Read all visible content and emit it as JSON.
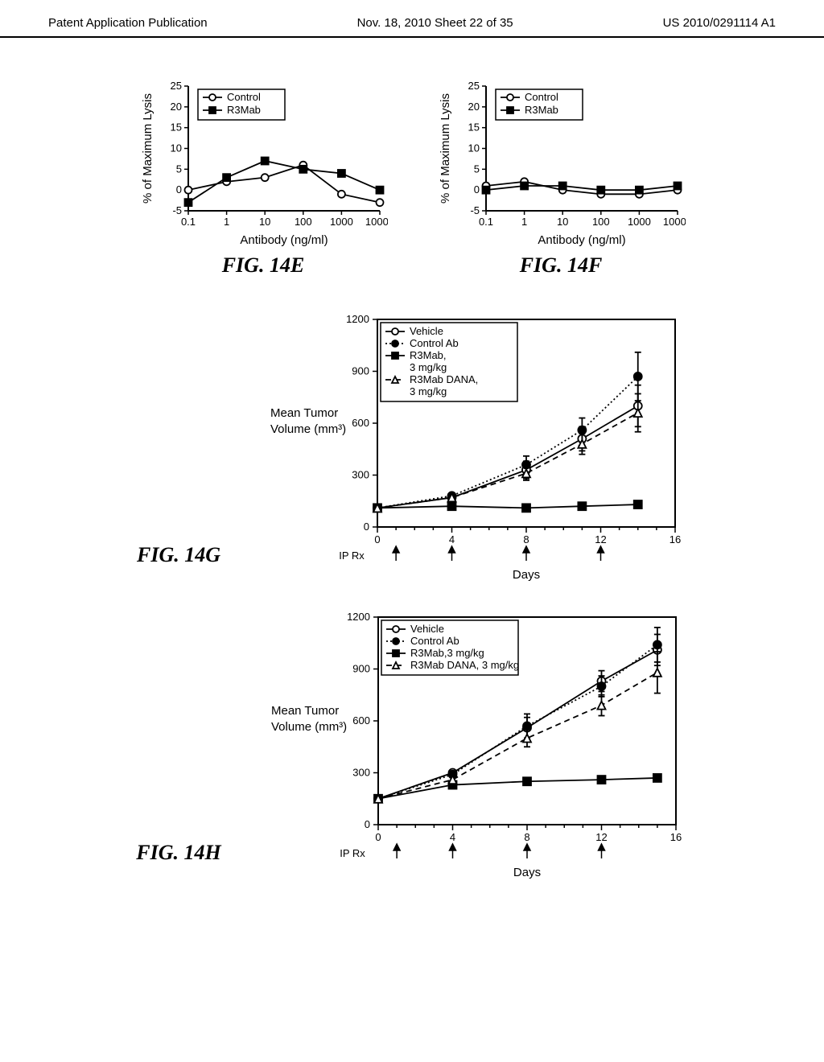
{
  "header": {
    "left": "Patent Application Publication",
    "center": "Nov. 18, 2010  Sheet 22 of 35",
    "right": "US 2010/0291114 A1"
  },
  "chart14E": {
    "type": "line",
    "figure_label": "FIG. 14E",
    "x_label": "Antibody (ng/ml)",
    "y_label": "% of Maximum Lysis",
    "x_scale": "log",
    "x_ticks": [
      "0.1",
      "1",
      "10",
      "100",
      "1000",
      "10000"
    ],
    "y_min": -5,
    "y_max": 25,
    "y_step": 5,
    "y_ticks": [
      "-5",
      "0",
      "5",
      "10",
      "15",
      "20",
      "25"
    ],
    "series": [
      {
        "name": "Control",
        "marker": "open-circle",
        "line": "solid",
        "points": [
          {
            "x": 0,
            "y": 0
          },
          {
            "x": 1,
            "y": 2
          },
          {
            "x": 2,
            "y": 3
          },
          {
            "x": 3,
            "y": 6
          },
          {
            "x": 4,
            "y": -1
          },
          {
            "x": 5,
            "y": -3
          }
        ]
      },
      {
        "name": "R3Mab",
        "marker": "filled-square",
        "line": "solid",
        "points": [
          {
            "x": 0,
            "y": -3
          },
          {
            "x": 1,
            "y": 3
          },
          {
            "x": 2,
            "y": 7
          },
          {
            "x": 3,
            "y": 5
          },
          {
            "x": 4,
            "y": 4
          },
          {
            "x": 5,
            "y": 0
          }
        ]
      }
    ],
    "legend": [
      "Control",
      "R3Mab"
    ]
  },
  "chart14F": {
    "type": "line",
    "figure_label": "FIG. 14F",
    "x_label": "Antibody (ng/ml)",
    "y_label": "% of Maximum Lysis",
    "x_scale": "log",
    "x_ticks": [
      "0.1",
      "1",
      "10",
      "100",
      "1000",
      "10000"
    ],
    "y_min": -5,
    "y_max": 25,
    "y_step": 5,
    "y_ticks": [
      "-5",
      "0",
      "5",
      "10",
      "15",
      "20",
      "25"
    ],
    "series": [
      {
        "name": "Control",
        "marker": "open-circle",
        "line": "solid",
        "points": [
          {
            "x": 0,
            "y": 1
          },
          {
            "x": 1,
            "y": 2
          },
          {
            "x": 2,
            "y": 0
          },
          {
            "x": 3,
            "y": -1
          },
          {
            "x": 4,
            "y": -1
          },
          {
            "x": 5,
            "y": 0
          }
        ]
      },
      {
        "name": "R3Mab",
        "marker": "filled-square",
        "line": "solid",
        "points": [
          {
            "x": 0,
            "y": 0
          },
          {
            "x": 1,
            "y": 1
          },
          {
            "x": 2,
            "y": 1
          },
          {
            "x": 3,
            "y": 0
          },
          {
            "x": 4,
            "y": 0
          },
          {
            "x": 5,
            "y": 1
          }
        ]
      }
    ],
    "legend": [
      "Control",
      "R3Mab"
    ]
  },
  "chart14G": {
    "type": "line",
    "figure_label": "FIG. 14G",
    "x_label": "Days",
    "y_label_l1": "Mean Tumor",
    "y_label_l2": "Volume (mm³)",
    "x_min": 0,
    "x_max": 16,
    "x_step": 4,
    "x_ticks": [
      "0",
      "4",
      "8",
      "12",
      "16"
    ],
    "y_min": 0,
    "y_max": 1200,
    "y_step": 300,
    "y_ticks": [
      "0",
      "300",
      "600",
      "900",
      "1200"
    ],
    "iprx": "IP Rx",
    "arrows": [
      1,
      4,
      8,
      12
    ],
    "series": [
      {
        "name": "Vehicle",
        "marker": "open-circle",
        "line": "solid",
        "points": [
          {
            "x": 0,
            "y": 110
          },
          {
            "x": 4,
            "y": 170
          },
          {
            "x": 8,
            "y": 330,
            "err": 50
          },
          {
            "x": 11,
            "y": 510,
            "err": 70
          },
          {
            "x": 14,
            "y": 700,
            "err": 120
          }
        ]
      },
      {
        "name": "Control Ab",
        "marker": "filled-circle",
        "line": "dotted",
        "points": [
          {
            "x": 0,
            "y": 110
          },
          {
            "x": 4,
            "y": 180
          },
          {
            "x": 8,
            "y": 360,
            "err": 50
          },
          {
            "x": 11,
            "y": 560,
            "err": 70
          },
          {
            "x": 14,
            "y": 870,
            "err": 140
          }
        ]
      },
      {
        "name": "R3Mab, 3 mg/kg",
        "marker": "filled-square",
        "line": "solid",
        "points": [
          {
            "x": 0,
            "y": 110
          },
          {
            "x": 4,
            "y": 120
          },
          {
            "x": 8,
            "y": 110
          },
          {
            "x": 11,
            "y": 120
          },
          {
            "x": 14,
            "y": 130
          }
        ]
      },
      {
        "name": "R3Mab DANA, 3 mg/kg",
        "marker": "open-triangle",
        "line": "dashed",
        "points": [
          {
            "x": 0,
            "y": 110
          },
          {
            "x": 4,
            "y": 170
          },
          {
            "x": 8,
            "y": 310,
            "err": 40
          },
          {
            "x": 11,
            "y": 480,
            "err": 60
          },
          {
            "x": 14,
            "y": 660,
            "err": 110
          }
        ]
      }
    ],
    "legend": [
      "Vehicle",
      "Control Ab",
      "R3Mab,",
      "  3 mg/kg",
      "R3Mab DANA,",
      "  3 mg/kg"
    ]
  },
  "chart14H": {
    "type": "line",
    "figure_label": "FIG. 14H",
    "x_label": "Days",
    "y_label_l1": "Mean Tumor",
    "y_label_l2": "Volume (mm³)",
    "x_min": 0,
    "x_max": 16,
    "x_step": 4,
    "x_ticks": [
      "0",
      "4",
      "8",
      "12",
      "16"
    ],
    "y_min": 0,
    "y_max": 1200,
    "y_step": 300,
    "y_ticks": [
      "0",
      "300",
      "600",
      "900",
      "1200"
    ],
    "iprx": "IP Rx",
    "arrows": [
      1,
      4,
      8,
      12
    ],
    "series": [
      {
        "name": "Vehicle",
        "marker": "open-circle",
        "line": "solid",
        "points": [
          {
            "x": 0,
            "y": 150
          },
          {
            "x": 4,
            "y": 300
          },
          {
            "x": 8,
            "y": 560,
            "err": 60
          },
          {
            "x": 12,
            "y": 830,
            "err": 60
          },
          {
            "x": 15,
            "y": 1010,
            "err": 90
          }
        ]
      },
      {
        "name": "Control Ab",
        "marker": "filled-circle",
        "line": "dotted",
        "points": [
          {
            "x": 0,
            "y": 150
          },
          {
            "x": 4,
            "y": 290
          },
          {
            "x": 8,
            "y": 570,
            "err": 70
          },
          {
            "x": 12,
            "y": 800,
            "err": 60
          },
          {
            "x": 15,
            "y": 1040,
            "err": 100
          }
        ]
      },
      {
        "name": "R3Mab, 3 mg/kg",
        "marker": "filled-square",
        "line": "solid",
        "points": [
          {
            "x": 0,
            "y": 150
          },
          {
            "x": 4,
            "y": 230
          },
          {
            "x": 8,
            "y": 250
          },
          {
            "x": 12,
            "y": 260
          },
          {
            "x": 15,
            "y": 270
          }
        ]
      },
      {
        "name": "R3Mab DANA, 3 mg/kg",
        "marker": "open-triangle",
        "line": "dashed",
        "points": [
          {
            "x": 0,
            "y": 150
          },
          {
            "x": 4,
            "y": 260
          },
          {
            "x": 8,
            "y": 500,
            "err": 50
          },
          {
            "x": 12,
            "y": 690,
            "err": 60
          },
          {
            "x": 15,
            "y": 880,
            "err": 120
          }
        ]
      }
    ],
    "legend": [
      "Vehicle",
      "Control Ab",
      "R3Mab,3 mg/kg",
      "R3Mab DANA, 3 mg/kg"
    ]
  },
  "colors": {
    "line": "#000000",
    "background": "#ffffff"
  }
}
